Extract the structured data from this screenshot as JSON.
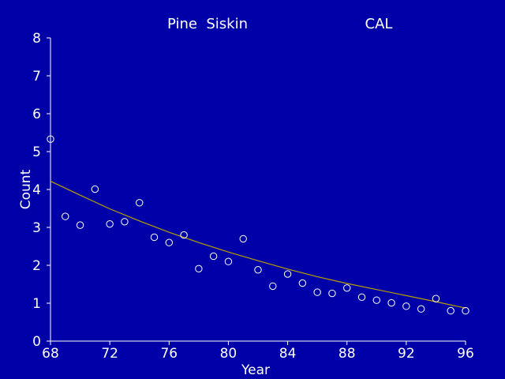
{
  "colors": {
    "background": "#0000a8",
    "axis": "#ffffff",
    "points": "#ffffff",
    "trend": "#b8a000",
    "text": "#ffffff"
  },
  "chart_data": {
    "type": "scatter",
    "title": "Pine  Siskin",
    "subtitle": "CAL",
    "xlabel": "Year",
    "ylabel": "Count",
    "xlim": [
      68,
      96
    ],
    "ylim": [
      0,
      8
    ],
    "xticks": [
      68,
      72,
      76,
      80,
      84,
      88,
      92,
      96
    ],
    "yticks": [
      0,
      1,
      2,
      3,
      4,
      5,
      6,
      7,
      8
    ],
    "grid": false,
    "series": [
      {
        "kind": "points",
        "x": [
          68,
          69,
          70,
          71,
          72,
          73,
          74,
          75,
          76,
          77,
          78,
          79,
          80,
          81,
          82,
          83,
          84,
          85,
          86,
          87,
          88,
          89,
          90,
          91,
          92,
          93,
          94,
          95,
          96
        ],
        "y": [
          5.33,
          3.29,
          3.06,
          4.01,
          3.09,
          3.15,
          3.65,
          2.74,
          2.6,
          2.8,
          1.91,
          2.24,
          2.1,
          2.7,
          1.88,
          1.45,
          1.77,
          1.53,
          1.29,
          1.26,
          1.4,
          1.16,
          1.08,
          1.01,
          0.92,
          0.85,
          1.12,
          0.8,
          0.8
        ]
      },
      {
        "kind": "trend",
        "x": [
          68,
          70,
          72,
          74,
          76,
          78,
          80,
          82,
          84,
          86,
          88,
          90,
          92,
          94,
          96
        ],
        "y": [
          4.22,
          3.85,
          3.49,
          3.17,
          2.87,
          2.6,
          2.35,
          2.12,
          1.9,
          1.7,
          1.52,
          1.36,
          1.2,
          1.04,
          0.87
        ]
      }
    ]
  }
}
